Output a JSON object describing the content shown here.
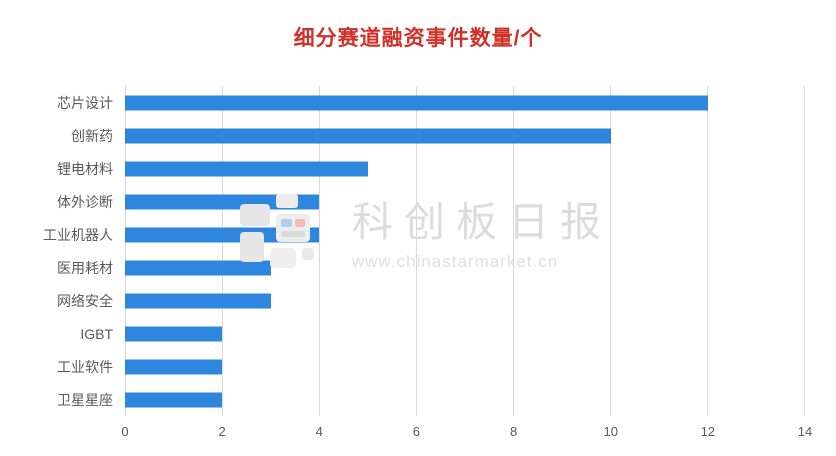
{
  "chart_data": {
    "type": "bar",
    "orientation": "horizontal",
    "title": "细分赛道融资事件数量/个",
    "categories": [
      "芯片设计",
      "创新药",
      "锂电材料",
      "体外诊断",
      "工业机器人",
      "医用耗材",
      "网络安全",
      "IGBT",
      "工业软件",
      "卫星星座"
    ],
    "values": [
      12,
      10,
      5,
      4,
      4,
      3,
      3,
      2,
      2,
      2
    ],
    "xlabel": "",
    "ylabel": "",
    "xlim": [
      0,
      14
    ],
    "x_ticks": [
      0,
      2,
      4,
      6,
      8,
      10,
      12,
      14
    ],
    "grid": true,
    "legend": "none",
    "bar_color": "#2E86DE",
    "title_color": "#D03028",
    "axis_text_color": "#595959",
    "grid_color": "#D9D9D9"
  },
  "watermark": {
    "brand": "科创板日报",
    "url": "www.chinastarmarket.cn",
    "logo_icon": "pixel-blocks-logo-icon",
    "text_color": "#DCDCDC",
    "url_color": "#E0E0E0"
  }
}
